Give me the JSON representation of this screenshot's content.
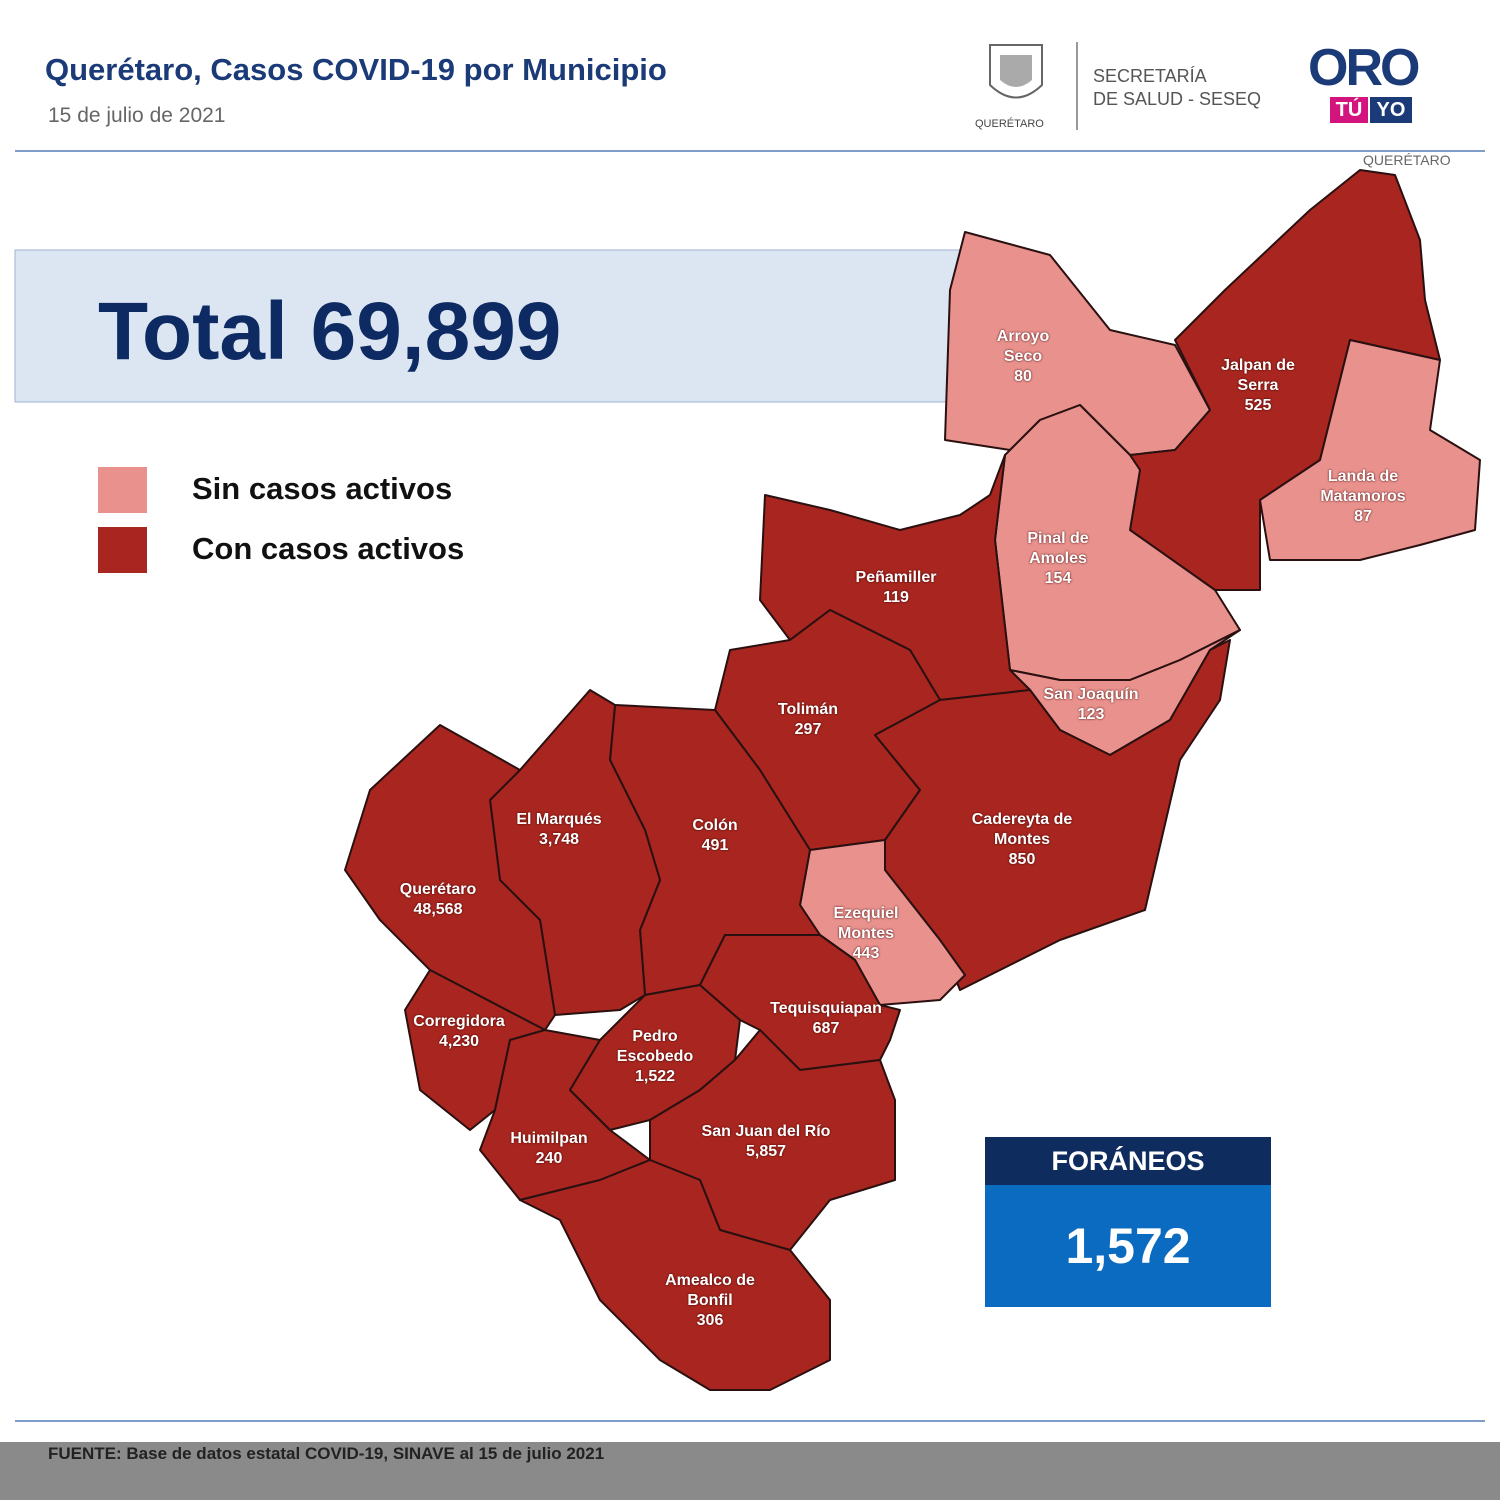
{
  "header": {
    "title": "Querétaro, Casos COVID-19 por Municipio",
    "date": "15 de julio de 2021"
  },
  "logos": {
    "state_caption": "QUERÉTARO",
    "secretaria": [
      "SECRETARÍA",
      "DE SALUD - SESEQ"
    ],
    "brand": "ORO",
    "brand_tu": "TÚ",
    "brand_yo": "YO",
    "brand_caption": "QUERÉTARO"
  },
  "total": {
    "label": "Total",
    "value": "69,899"
  },
  "legend": [
    {
      "label": "Sin casos activos",
      "color": "#e8918d"
    },
    {
      "label": "Con casos activos",
      "color": "#a8261f"
    }
  ],
  "municipalities": [
    {
      "name": "Arroyo Seco",
      "cases": "80",
      "active": false
    },
    {
      "name": "Jalpan de Serra",
      "cases": "525",
      "active": true
    },
    {
      "name": "Landa de Matamoros",
      "cases": "87",
      "active": false
    },
    {
      "name": "Pinal de Amoles",
      "cases": "154",
      "active": false
    },
    {
      "name": "San Joaquín",
      "cases": "123",
      "active": false
    },
    {
      "name": "Peñamiller",
      "cases": "119",
      "active": true
    },
    {
      "name": "Tolimán",
      "cases": "297",
      "active": true
    },
    {
      "name": "Cadereyta de Montes",
      "cases": "850",
      "active": true
    },
    {
      "name": "Ezequiel Montes",
      "cases": "443",
      "active": false
    },
    {
      "name": "Colón",
      "cases": "491",
      "active": true
    },
    {
      "name": "El Marqués",
      "cases": "3,748",
      "active": true
    },
    {
      "name": "Querétaro",
      "cases": "48,568",
      "active": true
    },
    {
      "name": "Corregidora",
      "cases": "4,230",
      "active": true
    },
    {
      "name": "Huimilpan",
      "cases": "240",
      "active": true
    },
    {
      "name": "Pedro Escobedo",
      "cases": "1,522",
      "active": true
    },
    {
      "name": "Tequisquiapan",
      "cases": "687",
      "active": true
    },
    {
      "name": "San Juan del Río",
      "cases": "5,857",
      "active": true
    },
    {
      "name": "Amealco de Bonfil",
      "cases": "306",
      "active": true
    }
  ],
  "foraneos": {
    "title": "FORÁNEOS",
    "value": "1,572"
  },
  "source": "FUENTE:  Base de datos estatal COVID-19,  SINAVE  al 15 de julio 2021"
}
